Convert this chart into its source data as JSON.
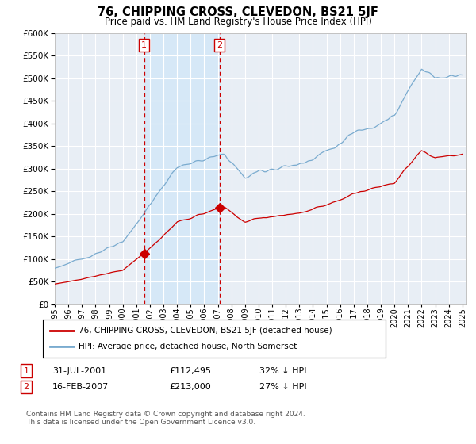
{
  "title": "76, CHIPPING CROSS, CLEVEDON, BS21 5JF",
  "subtitle": "Price paid vs. HM Land Registry's House Price Index (HPI)",
  "legend_label_red": "76, CHIPPING CROSS, CLEVEDON, BS21 5JF (detached house)",
  "legend_label_blue": "HPI: Average price, detached house, North Somerset",
  "annotation1_date": "31-JUL-2001",
  "annotation1_price": "£112,495",
  "annotation1_hpi": "32% ↓ HPI",
  "annotation2_date": "16-FEB-2007",
  "annotation2_price": "£213,000",
  "annotation2_hpi": "27% ↓ HPI",
  "footer": "Contains HM Land Registry data © Crown copyright and database right 2024.\nThis data is licensed under the Open Government Licence v3.0.",
  "ylim": [
    0,
    600000
  ],
  "yticks": [
    0,
    50000,
    100000,
    150000,
    200000,
    250000,
    300000,
    350000,
    400000,
    450000,
    500000,
    550000,
    600000
  ],
  "background_color": "#ffffff",
  "plot_bg_color": "#e8eef5",
  "grid_color": "#ffffff",
  "red_color": "#cc0000",
  "blue_color": "#7aabcf",
  "shade_color": "#d6e8f7",
  "sale1_x": 2001.58,
  "sale1_y": 112495,
  "sale2_x": 2007.12,
  "sale2_y": 213000,
  "vline1_x": 2001.58,
  "vline2_x": 2007.12,
  "shade_x1": 2001.58,
  "shade_x2": 2007.12,
  "xmin": 1995,
  "xmax": 2025.3
}
